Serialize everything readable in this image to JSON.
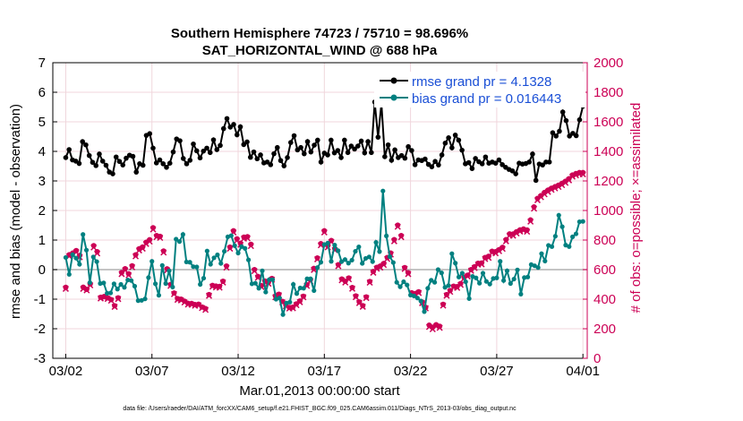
{
  "chart_data": {
    "type": "line",
    "title_line1": "Southern Hemisphere 74723 / 75710 = 98.696%",
    "title_line2": "SAT_HORIZONTAL_WIND @ 688 hPa",
    "xlabel": "Mar.01,2013 00:00:00 start",
    "ylabel_left": "rmse and bias (model - observation)",
    "ylabel_right": "# of obs: o=possible; ×=assimilated",
    "footnote": "data file: /Users/raeder/DAI/ATM_forcXX/CAM6_setup/f.e21.FHIST_BGC.f09_025.CAM6assim.011/Diags_NTrS_2013-03/obs_diag_output.nc",
    "x_ticks": [
      "03/02",
      "03/07",
      "03/12",
      "03/17",
      "03/22",
      "03/27",
      "04/01"
    ],
    "x_tick_days": [
      1,
      6,
      11,
      16,
      21,
      26,
      31
    ],
    "xlim_days": [
      0.25,
      31.25
    ],
    "ylim_left": [
      -3,
      7
    ],
    "y_ticks_left": [
      "-3",
      "-2",
      "-1",
      "0",
      "1",
      "2",
      "3",
      "4",
      "5",
      "6",
      "7"
    ],
    "ylim_right": [
      0,
      2000
    ],
    "y_ticks_right": [
      "0",
      "200",
      "400",
      "600",
      "800",
      "1000",
      "1200",
      "1400",
      "1600",
      "1800",
      "2000"
    ],
    "grid": true,
    "legend_position": "top-right",
    "colors": {
      "rmse": "#000000",
      "bias": "#008080",
      "obs": "#cc0055",
      "grid": "#f0d6dc",
      "zero_line": "#b0b0b0",
      "right_axis": "#cc0055"
    },
    "series": [
      {
        "name": "rmse grand pr = 4.1328",
        "values": [
          3.79,
          4.06,
          3.71,
          3.67,
          3.59,
          4.33,
          4.22,
          3.86,
          3.63,
          3.52,
          3.91,
          3.67,
          3.53,
          3.3,
          3.24,
          3.81,
          3.66,
          3.54,
          3.77,
          3.87,
          3.83,
          3.3,
          3.58,
          3.53,
          4.54,
          4.6,
          4.11,
          3.61,
          3.71,
          3.58,
          3.46,
          3.6,
          3.98,
          4.42,
          4.36,
          3.76,
          3.58,
          3.7,
          4.25,
          4.02,
          3.78,
          4.01,
          4.11,
          3.96,
          4.39,
          4.06,
          4.2,
          4.77,
          5.11,
          4.82,
          4.91,
          4.56,
          4.83,
          4.23,
          4.32,
          3.8,
          3.98,
          3.75,
          3.88,
          3.61,
          3.64,
          3.55,
          3.92,
          4.13,
          3.69,
          3.51,
          3.79,
          4.3,
          4.53,
          4.05,
          4.13,
          3.92,
          4.33,
          3.98,
          4.21,
          4.38,
          3.64,
          3.94,
          3.88,
          4.38,
          3.95,
          4.03,
          3.79,
          4.38,
          3.96,
          4.18,
          4.08,
          4.18,
          4.35,
          3.95,
          4.33,
          3.96,
          5.67,
          4.48,
          5.62,
          3.82,
          4.22,
          3.7,
          4.05,
          3.79,
          3.86,
          3.77,
          4.16,
          4.03,
          3.55,
          3.71,
          3.69,
          3.74,
          3.56,
          3.48,
          3.66,
          3.54,
          3.88,
          4.28,
          4.46,
          4.12,
          4.55,
          4.38,
          4.04,
          3.58,
          3.62,
          3.42,
          3.76,
          3.65,
          3.58,
          3.81,
          3.6,
          3.64,
          3.6,
          3.71,
          3.55,
          3.46,
          3.39,
          3.34,
          3.24,
          3.6,
          3.57,
          3.59,
          3.64,
          3.91,
          3.02,
          3.57,
          3.54,
          3.64,
          3.64,
          4.63,
          4.52,
          4.68,
          5.33,
          5.04,
          4.52,
          4.61,
          4.53,
          5.07,
          5.53
        ]
      },
      {
        "name": "bias grand pr = 0.016443",
        "values": [
          0.41,
          -0.16,
          0.51,
          0.39,
          0.18,
          1.19,
          0.66,
          -0.44,
          0.43,
          0.27,
          -0.47,
          -0.45,
          -0.8,
          -0.79,
          -0.48,
          -0.66,
          -0.5,
          -0.6,
          -0.35,
          -0.37,
          -0.56,
          -1.05,
          -1.04,
          -0.99,
          -0.27,
          0.28,
          -0.48,
          -0.87,
          0.14,
          -0.47,
          -0.04,
          -0.59,
          1.03,
          0.95,
          1.19,
          0.26,
          0.25,
          0.1,
          0.09,
          -0.5,
          -0.29,
          0.63,
          0.18,
          0.4,
          0.5,
          0.21,
          0.62,
          1.11,
          1.15,
          0.81,
          0.56,
          0.78,
          0.72,
          0.33,
          -0.48,
          -0.46,
          -0.63,
          -0.04,
          -0.76,
          -0.34,
          -0.34,
          -1.0,
          -0.96,
          -1.52,
          -1.13,
          -1.1,
          -0.5,
          -0.81,
          -0.62,
          -0.63,
          -0.31,
          -0.31,
          -0.71,
          0.07,
          0.25,
          0.85,
          0.9,
          0.28,
          0.83,
          0.64,
          0.27,
          0.34,
          0.22,
          0.32,
          0.62,
          0.77,
          0.21,
          0.38,
          0.43,
          0.27,
          0.92,
          0.61,
          2.66,
          1.14,
          0.44,
          0.24,
          -0.43,
          -0.58,
          -0.41,
          -0.52,
          -0.86,
          -0.89,
          -0.96,
          -1.06,
          -1.42,
          -0.63,
          -0.36,
          -0.43,
          0.0,
          -0.11,
          -0.6,
          -0.54,
          0.54,
          0.22,
          -0.25,
          -0.12,
          -0.41,
          -0.98,
          -0.23,
          -0.28,
          -0.46,
          -0.12,
          -0.4,
          -0.49,
          -0.3,
          -0.28,
          0.28,
          -0.37,
          -0.04,
          -0.47,
          -0.32,
          -0.01,
          -0.83,
          -0.27,
          -0.25,
          0.17,
          0.13,
          0.07,
          0.54,
          0.29,
          0.82,
          0.78,
          1.13,
          1.84,
          1.45,
          0.83,
          0.78,
          1.11,
          1.21,
          1.62,
          1.63
        ]
      },
      {
        "name": "obs possible",
        "values": [
          480,
          701,
          712,
          729,
          696,
          481,
          467,
          502,
          762,
          721,
          413,
          418,
          409,
          397,
          355,
          409,
          580,
          606,
          572,
          626,
          700,
          741,
          753,
          785,
          802,
          883,
          830,
          825,
          726,
          605,
          499,
          442,
          404,
          400,
          386,
          372,
          371,
          364,
          366,
          347,
          336,
          431,
          493,
          489,
          486,
          521,
          624,
          752,
          863,
          808,
          778,
          820,
          823,
          771,
          600,
          554,
          492,
          523,
          514,
          540,
          421,
          433,
          385,
          360,
          344,
          346,
          368,
          388,
          420,
          498,
          530,
          608,
          679,
          776,
          863,
          761,
          797,
          742,
          633,
          536,
          521,
          543,
          479,
          422,
          381,
          356,
          415,
          520,
          587,
          615,
          624,
          642,
          682,
          712,
          803,
          901,
          830,
          614,
          579,
          443,
          437,
          450,
          380,
          345,
          224,
          210,
          227,
          217,
          365,
          431,
          458,
          488,
          485,
          505,
          548,
          562,
          600,
          620,
          643,
          645,
          682,
          690,
          724,
          721,
          735,
          751,
          803,
          842,
          841,
          856,
          869,
          875,
          868,
          936,
          1024,
          1082,
          1101,
          1122,
          1138,
          1151,
          1161,
          1171,
          1183,
          1198,
          1215,
          1240,
          1250,
          1257,
          1257
        ]
      },
      {
        "name": "obs assimilated",
        "values": [
          470,
          690,
          700,
          718,
          684,
          470,
          460,
          494,
          750,
          710,
          405,
          410,
          402,
          390,
          348,
          401,
          570,
          596,
          562,
          616,
          690,
          730,
          742,
          774,
          790,
          872,
          820,
          815,
          716,
          596,
          490,
          434,
          396,
          392,
          378,
          364,
          363,
          356,
          358,
          340,
          328,
          423,
          485,
          480,
          478,
          513,
          614,
          742,
          852,
          797,
          768,
          810,
          812,
          760,
          590,
          545,
          483,
          514,
          505,
          532,
          413,
          426,
          378,
          353,
          337,
          339,
          360,
          380,
          413,
          490,
          522,
          598,
          670,
          765,
          852,
          751,
          787,
          732,
          624,
          528,
          513,
          535,
          471,
          414,
          374,
          349,
          408,
          512,
          579,
          606,
          614,
          632,
          672,
          702,
          792,
          890,
          820,
          605,
          570,
          435,
          430,
          442,
          373,
          338,
          212,
          197,
          216,
          206,
          357,
          424,
          450,
          480,
          477,
          497,
          540,
          554,
          592,
          611,
          634,
          636,
          672,
          680,
          714,
          711,
          725,
          741,
          792,
          830,
          830,
          845,
          858,
          864,
          857,
          925,
          1013,
          1070,
          1090,
          1110,
          1126,
          1140,
          1150,
          1160,
          1172,
          1187,
          1204,
          1229,
          1238,
          1246,
          1245
        ]
      }
    ]
  }
}
